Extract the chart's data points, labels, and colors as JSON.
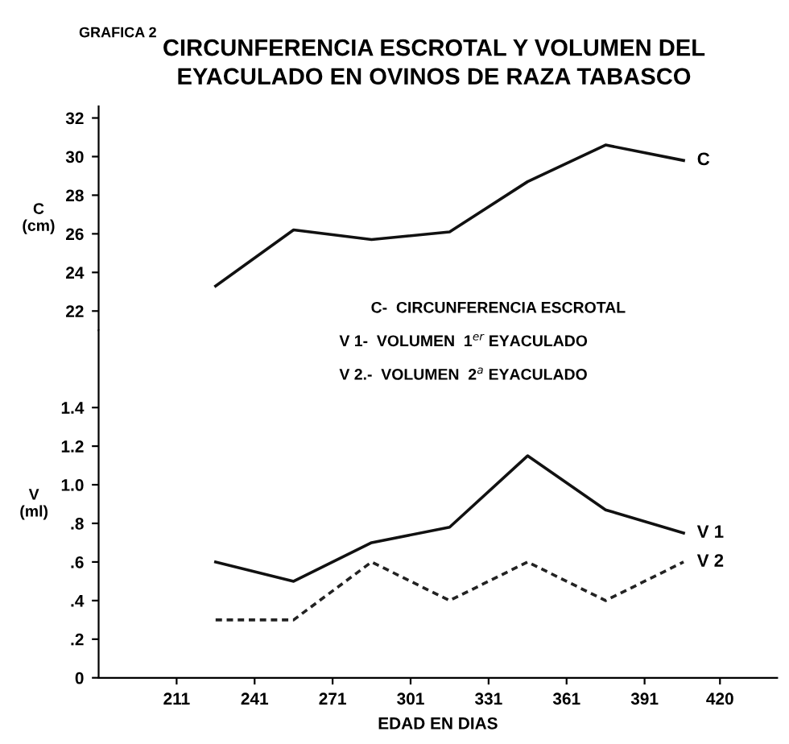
{
  "chart_data": [
    {
      "type": "line",
      "title": "CIRCUNFERENCIA ESCROTAL Y VOLUMEN DEL\nEYACULADO EN OVINOS DE RAZA TABASCO",
      "ylabel": "C\n(cm)",
      "annotations": [
        "GRAFICA 2",
        "C-  CIRCUNFERENCIA ESCROTAL",
        "V 1-  VOLUMEN  1$^{er}$ EYACULADO",
        "V 2.-  VOLUMEN  2$^{a}$ EYACULADO"
      ],
      "x": [
        226,
        256,
        286,
        316,
        346,
        376,
        406
      ],
      "xlim": [
        181,
        442
      ],
      "ylim": [
        21,
        32.6
      ],
      "yticks": [
        22,
        24,
        26,
        28,
        30,
        32
      ],
      "tick_labels": "y",
      "legend": false,
      "series": [
        {
          "name": "C",
          "color": "#111111",
          "line_style": "solid",
          "values": [
            23.3,
            26.2,
            25.7,
            26.1,
            28.7,
            30.6,
            29.8
          ]
        }
      ]
    },
    {
      "type": "line",
      "xlabel": "EDAD EN DIAS",
      "ylabel": "V\n(ml)",
      "x": [
        226,
        256,
        286,
        316,
        346,
        376,
        406
      ],
      "xlim": [
        181,
        442
      ],
      "ylim": [
        0,
        1.8
      ],
      "xticks": [
        211,
        241,
        271,
        301,
        331,
        361,
        391,
        420
      ],
      "yticks": [
        {
          "value": 0,
          "label": "0"
        },
        {
          "value": 0.2,
          "label": ".2"
        },
        {
          "value": 0.4,
          "label": ".4"
        },
        {
          "value": 0.6,
          "label": ".6"
        },
        {
          "value": 0.8,
          "label": ".8"
        },
        {
          "value": 1.0,
          "label": "1.0"
        },
        {
          "value": 1.2,
          "label": "1.2"
        },
        {
          "value": 1.4,
          "label": "1.4"
        }
      ],
      "legend": false,
      "series": [
        {
          "name": "V 1",
          "color": "#111111",
          "line_style": "solid",
          "values": [
            0.6,
            0.5,
            0.7,
            0.78,
            1.15,
            0.87,
            0.75
          ]
        },
        {
          "name": "V 2",
          "color": "#222222",
          "line_style": "dashed",
          "values": [
            0.3,
            0.3,
            0.6,
            0.4,
            0.6,
            0.4,
            0.6
          ]
        }
      ]
    }
  ]
}
